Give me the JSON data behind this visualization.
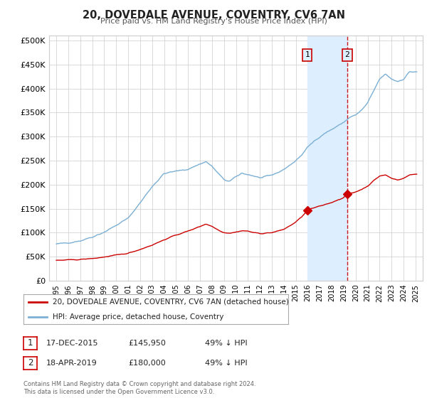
{
  "title": "20, DOVEDALE AVENUE, COVENTRY, CV6 7AN",
  "subtitle": "Price paid vs. HM Land Registry's House Price Index (HPI)",
  "ylabel_ticks": [
    "£0",
    "£50K",
    "£100K",
    "£150K",
    "£200K",
    "£250K",
    "£300K",
    "£350K",
    "£400K",
    "£450K",
    "£500K"
  ],
  "ytick_values": [
    0,
    50000,
    100000,
    150000,
    200000,
    250000,
    300000,
    350000,
    400000,
    450000,
    500000
  ],
  "hpi_color": "#7bafd4",
  "price_color": "#cc0000",
  "annotation_fill": "#ddeeff",
  "annotation_border": "#cc0000",
  "vline_color": "#cc0000",
  "span_color": "#ddeeff",
  "point1_date_num": 2015.96,
  "point1_price": 145950,
  "point2_date_num": 2019.3,
  "point2_price": 180000,
  "legend_label_price": "20, DOVEDALE AVENUE, COVENTRY, CV6 7AN (detached house)",
  "legend_label_hpi": "HPI: Average price, detached house, Coventry",
  "note1_label": "1",
  "note1_date": "17-DEC-2015",
  "note1_price": "£145,950",
  "note1_hpi": "49% ↓ HPI",
  "note2_label": "2",
  "note2_date": "18-APR-2019",
  "note2_price": "£180,000",
  "note2_hpi": "49% ↓ HPI",
  "footer": "Contains HM Land Registry data © Crown copyright and database right 2024.\nThis data is licensed under the Open Government Licence v3.0.",
  "background_color": "#ffffff",
  "grid_color": "#cccccc"
}
